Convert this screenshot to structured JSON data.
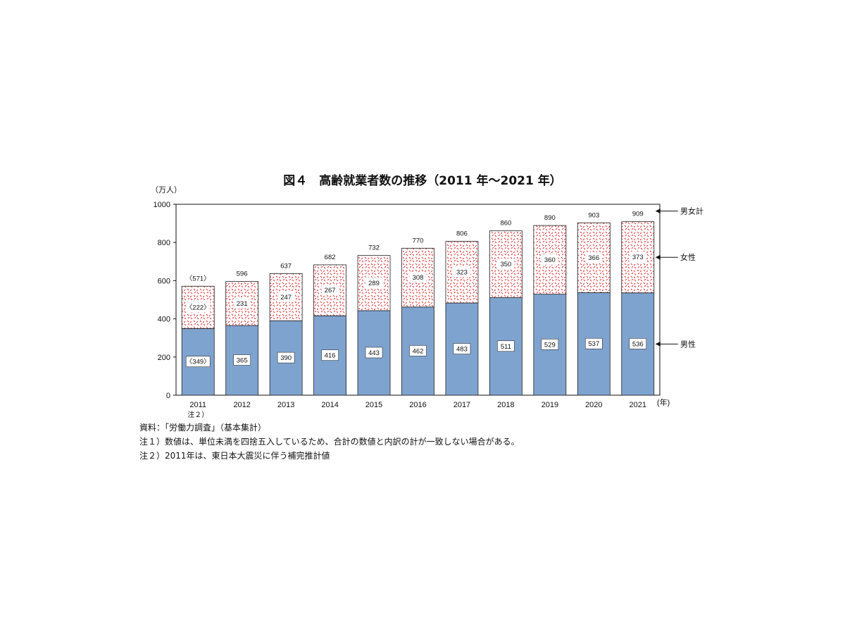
{
  "chart_data": {
    "type": "bar",
    "stacked": true,
    "title": "図４　高齢就業者数の推移（2011 年～2021 年）",
    "ylabel": "（万人）",
    "xlabel": "(年)",
    "ylim": [
      0,
      1000
    ],
    "yticks": [
      "0",
      "200",
      "400",
      "600",
      "800",
      "1000"
    ],
    "categories": [
      "2011",
      "2012",
      "2013",
      "2014",
      "2015",
      "2016",
      "2017",
      "2018",
      "2019",
      "2020",
      "2021"
    ],
    "category_sublabels": {
      "2011": "注２）"
    },
    "series": [
      {
        "name": "男性",
        "values": [
          349,
          365,
          390,
          416,
          443,
          462,
          483,
          511,
          529,
          537,
          536
        ],
        "labels": [
          "〈349〉",
          "365",
          "390",
          "416",
          "443",
          "462",
          "483",
          "511",
          "529",
          "537",
          "536"
        ],
        "color": "#7fa3cf",
        "fill": "solid"
      },
      {
        "name": "女性",
        "values": [
          222,
          231,
          247,
          267,
          289,
          308,
          323,
          350,
          360,
          366,
          373
        ],
        "labels": [
          "〈222〉",
          "231",
          "247",
          "267",
          "289",
          "308",
          "323",
          "350",
          "360",
          "366",
          "373"
        ],
        "color": "#e03030",
        "fill": "pattern"
      }
    ],
    "totals": {
      "name": "男女計",
      "values": [
        571,
        596,
        637,
        682,
        732,
        770,
        806,
        860,
        890,
        903,
        909
      ],
      "labels": [
        "〈571〉",
        "596",
        "637",
        "682",
        "732",
        "770",
        "806",
        "860",
        "890",
        "903",
        "909"
      ]
    },
    "grid": false,
    "legend": "right"
  },
  "notes": {
    "source": "資料：「労働力調査」（基本集計）",
    "note1": "注１）数値は、単位未満を四捨五入しているため、合計の数値と内訳の計が一致しない場合がある。",
    "note2": "注２）2011年は、東日本大震災に伴う補完推計値"
  }
}
